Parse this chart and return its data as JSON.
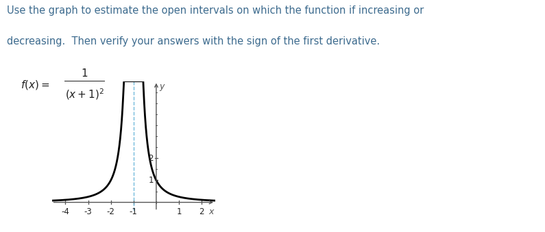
{
  "title_line1": "Use the graph to estimate the open intervals on which the function if increasing or",
  "title_line2": "decreasing.  Then verify your answers with the sign of the first derivative.",
  "x_min": -4.6,
  "x_max": 2.6,
  "y_min": -0.4,
  "y_max": 5.5,
  "x_ticks": [
    -4,
    -3,
    -2,
    -1,
    1,
    2
  ],
  "y_ticks": [
    1,
    2
  ],
  "y_minor_ticks": [
    0.5,
    1.0,
    1.5,
    2.0,
    2.5,
    3.0,
    3.5,
    4.0,
    4.5,
    5.0
  ],
  "asymptote_x": -1,
  "curve_color": "#000000",
  "axis_color": "#555555",
  "text_color": "#3d6b8e",
  "formula_color": "#222222",
  "background_color": "#ffffff",
  "title_fontsize": 10.5,
  "tick_fontsize": 8.5
}
